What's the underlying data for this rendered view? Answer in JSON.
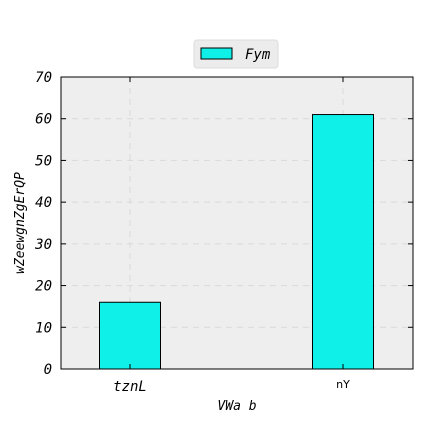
{
  "chart_data": {
    "type": "bar",
    "categories": [
      "tznL",
      "nY"
    ],
    "series": [
      {
        "name": "Fym",
        "values": [
          16,
          61
        ],
        "color": "#0ff0e8"
      }
    ],
    "title": "",
    "xlabel": "VWa b",
    "ylabel": "wZeewgnZgErQP",
    "ylim": [
      0,
      70
    ],
    "yticks": [
      0,
      10,
      20,
      30,
      40,
      50,
      60,
      70
    ],
    "grid": true,
    "legend": "top-center",
    "background_color": "#eeeeee"
  }
}
